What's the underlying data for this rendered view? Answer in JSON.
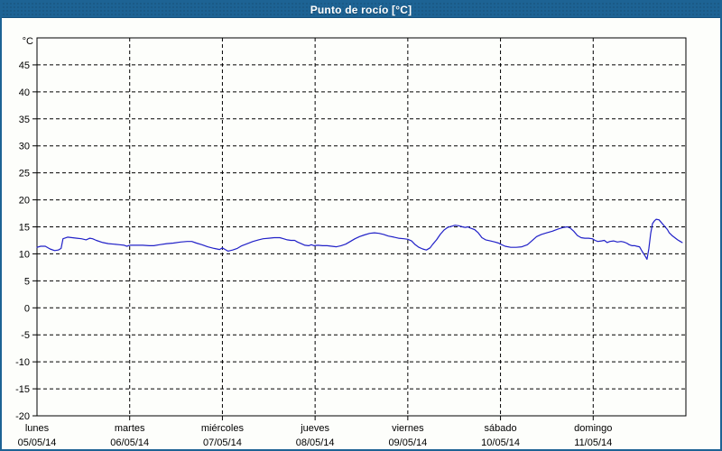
{
  "window": {
    "title": "Punto de rocío [°C]"
  },
  "colors": {
    "titlebar_bg": "#1d6394",
    "frame_border": "#1d6394",
    "background": "#fdfefb",
    "plot_background": "#fdfefb",
    "grid": "#000000",
    "axis": "#000000",
    "text": "#000000",
    "title_text": "#ffffff",
    "line": "#2121c8"
  },
  "chart_data": {
    "type": "line",
    "title": "Punto de rocío [°C]",
    "ylabel": "°C",
    "xlabel": "",
    "grid": "dashed",
    "legend": "none",
    "ylim": [
      -20,
      50
    ],
    "y_ticks": [
      45,
      40,
      35,
      30,
      25,
      20,
      15,
      10,
      5,
      0,
      -5,
      -10,
      -15,
      -20
    ],
    "x_days": 7,
    "x_categories": [
      {
        "day": "lunes",
        "date": "05/05/14"
      },
      {
        "day": "martes",
        "date": "06/05/14"
      },
      {
        "day": "miércoles",
        "date": "07/05/14"
      },
      {
        "day": "jueves",
        "date": "08/05/14"
      },
      {
        "day": "viernes",
        "date": "09/05/14"
      },
      {
        "day": "sábado",
        "date": "10/05/14"
      },
      {
        "day": "domingo",
        "date": "11/05/14"
      }
    ],
    "series": [
      {
        "name": "Punto de rocío",
        "color": "#2121c8",
        "points": [
          [
            0.0,
            11.2
          ],
          [
            0.04,
            11.4
          ],
          [
            0.09,
            11.4
          ],
          [
            0.14,
            10.9
          ],
          [
            0.19,
            10.6
          ],
          [
            0.23,
            10.7
          ],
          [
            0.26,
            11.0
          ],
          [
            0.28,
            12.8
          ],
          [
            0.33,
            13.1
          ],
          [
            0.38,
            13.0
          ],
          [
            0.43,
            12.9
          ],
          [
            0.48,
            12.8
          ],
          [
            0.53,
            12.6
          ],
          [
            0.57,
            12.9
          ],
          [
            0.6,
            12.8
          ],
          [
            0.64,
            12.5
          ],
          [
            0.71,
            12.1
          ],
          [
            0.77,
            11.9
          ],
          [
            0.83,
            11.8
          ],
          [
            0.89,
            11.7
          ],
          [
            0.94,
            11.6
          ],
          [
            0.97,
            11.4
          ],
          [
            1.0,
            11.6
          ],
          [
            1.06,
            11.6
          ],
          [
            1.14,
            11.6
          ],
          [
            1.21,
            11.5
          ],
          [
            1.26,
            11.5
          ],
          [
            1.32,
            11.7
          ],
          [
            1.4,
            11.9
          ],
          [
            1.47,
            12.0
          ],
          [
            1.55,
            12.2
          ],
          [
            1.62,
            12.3
          ],
          [
            1.67,
            12.3
          ],
          [
            1.72,
            12.0
          ],
          [
            1.78,
            11.7
          ],
          [
            1.84,
            11.3
          ],
          [
            1.91,
            11.0
          ],
          [
            1.97,
            10.8
          ],
          [
            2.0,
            11.1
          ],
          [
            2.03,
            10.8
          ],
          [
            2.06,
            10.5
          ],
          [
            2.11,
            10.7
          ],
          [
            2.16,
            11.0
          ],
          [
            2.21,
            11.5
          ],
          [
            2.27,
            11.9
          ],
          [
            2.33,
            12.3
          ],
          [
            2.39,
            12.6
          ],
          [
            2.44,
            12.8
          ],
          [
            2.5,
            12.9
          ],
          [
            2.56,
            13.0
          ],
          [
            2.62,
            13.0
          ],
          [
            2.66,
            12.8
          ],
          [
            2.7,
            12.6
          ],
          [
            2.74,
            12.5
          ],
          [
            2.78,
            12.5
          ],
          [
            2.81,
            12.2
          ],
          [
            2.85,
            11.9
          ],
          [
            2.89,
            11.6
          ],
          [
            2.93,
            11.5
          ],
          [
            2.96,
            11.7
          ],
          [
            2.99,
            11.5
          ],
          [
            3.03,
            11.6
          ],
          [
            3.08,
            11.5
          ],
          [
            3.13,
            11.5
          ],
          [
            3.18,
            11.4
          ],
          [
            3.23,
            11.3
          ],
          [
            3.28,
            11.5
          ],
          [
            3.33,
            11.8
          ],
          [
            3.38,
            12.3
          ],
          [
            3.43,
            12.8
          ],
          [
            3.48,
            13.2
          ],
          [
            3.53,
            13.5
          ],
          [
            3.59,
            13.8
          ],
          [
            3.64,
            13.9
          ],
          [
            3.69,
            13.8
          ],
          [
            3.74,
            13.6
          ],
          [
            3.79,
            13.3
          ],
          [
            3.85,
            13.1
          ],
          [
            3.9,
            12.9
          ],
          [
            3.96,
            12.8
          ],
          [
            4.0,
            12.7
          ],
          [
            4.04,
            12.4
          ],
          [
            4.08,
            11.7
          ],
          [
            4.12,
            11.2
          ],
          [
            4.16,
            10.9
          ],
          [
            4.2,
            10.7
          ],
          [
            4.24,
            11.1
          ],
          [
            4.27,
            11.8
          ],
          [
            4.31,
            12.6
          ],
          [
            4.35,
            13.6
          ],
          [
            4.39,
            14.4
          ],
          [
            4.43,
            14.9
          ],
          [
            4.47,
            15.1
          ],
          [
            4.51,
            15.3
          ],
          [
            4.55,
            15.2
          ],
          [
            4.59,
            15.0
          ],
          [
            4.62,
            14.9
          ],
          [
            4.65,
            15.0
          ],
          [
            4.67,
            14.8
          ],
          [
            4.72,
            14.5
          ],
          [
            4.76,
            13.9
          ],
          [
            4.8,
            13.0
          ],
          [
            4.84,
            12.6
          ],
          [
            4.89,
            12.4
          ],
          [
            4.94,
            12.2
          ],
          [
            4.98,
            12.0
          ],
          [
            5.0,
            11.8
          ],
          [
            5.05,
            11.4
          ],
          [
            5.11,
            11.2
          ],
          [
            5.17,
            11.2
          ],
          [
            5.23,
            11.3
          ],
          [
            5.29,
            11.7
          ],
          [
            5.35,
            12.6
          ],
          [
            5.39,
            13.2
          ],
          [
            5.44,
            13.6
          ],
          [
            5.5,
            13.9
          ],
          [
            5.56,
            14.2
          ],
          [
            5.62,
            14.6
          ],
          [
            5.68,
            14.9
          ],
          [
            5.72,
            15.0
          ],
          [
            5.75,
            14.8
          ],
          [
            5.79,
            14.2
          ],
          [
            5.83,
            13.4
          ],
          [
            5.87,
            13.0
          ],
          [
            5.91,
            12.9
          ],
          [
            5.95,
            12.9
          ],
          [
            5.99,
            12.8
          ],
          [
            6.02,
            12.5
          ],
          [
            6.05,
            12.3
          ],
          [
            6.09,
            12.4
          ],
          [
            6.12,
            12.5
          ],
          [
            6.15,
            12.1
          ],
          [
            6.18,
            12.3
          ],
          [
            6.22,
            12.4
          ],
          [
            6.26,
            12.2
          ],
          [
            6.3,
            12.3
          ],
          [
            6.33,
            12.2
          ],
          [
            6.36,
            12.0
          ],
          [
            6.39,
            11.7
          ],
          [
            6.42,
            11.5
          ],
          [
            6.45,
            11.5
          ],
          [
            6.47,
            11.4
          ],
          [
            6.5,
            11.3
          ],
          [
            6.53,
            10.4
          ],
          [
            6.56,
            9.6
          ],
          [
            6.58,
            9.0
          ],
          [
            6.6,
            10.9
          ],
          [
            6.62,
            13.8
          ],
          [
            6.64,
            15.6
          ],
          [
            6.66,
            16.1
          ],
          [
            6.68,
            16.4
          ],
          [
            6.71,
            16.3
          ],
          [
            6.74,
            15.7
          ],
          [
            6.77,
            15.1
          ],
          [
            6.8,
            14.5
          ],
          [
            6.82,
            13.9
          ],
          [
            6.85,
            13.4
          ],
          [
            6.88,
            13.0
          ],
          [
            6.91,
            12.6
          ],
          [
            6.94,
            12.3
          ],
          [
            6.96,
            12.1
          ]
        ]
      }
    ]
  }
}
